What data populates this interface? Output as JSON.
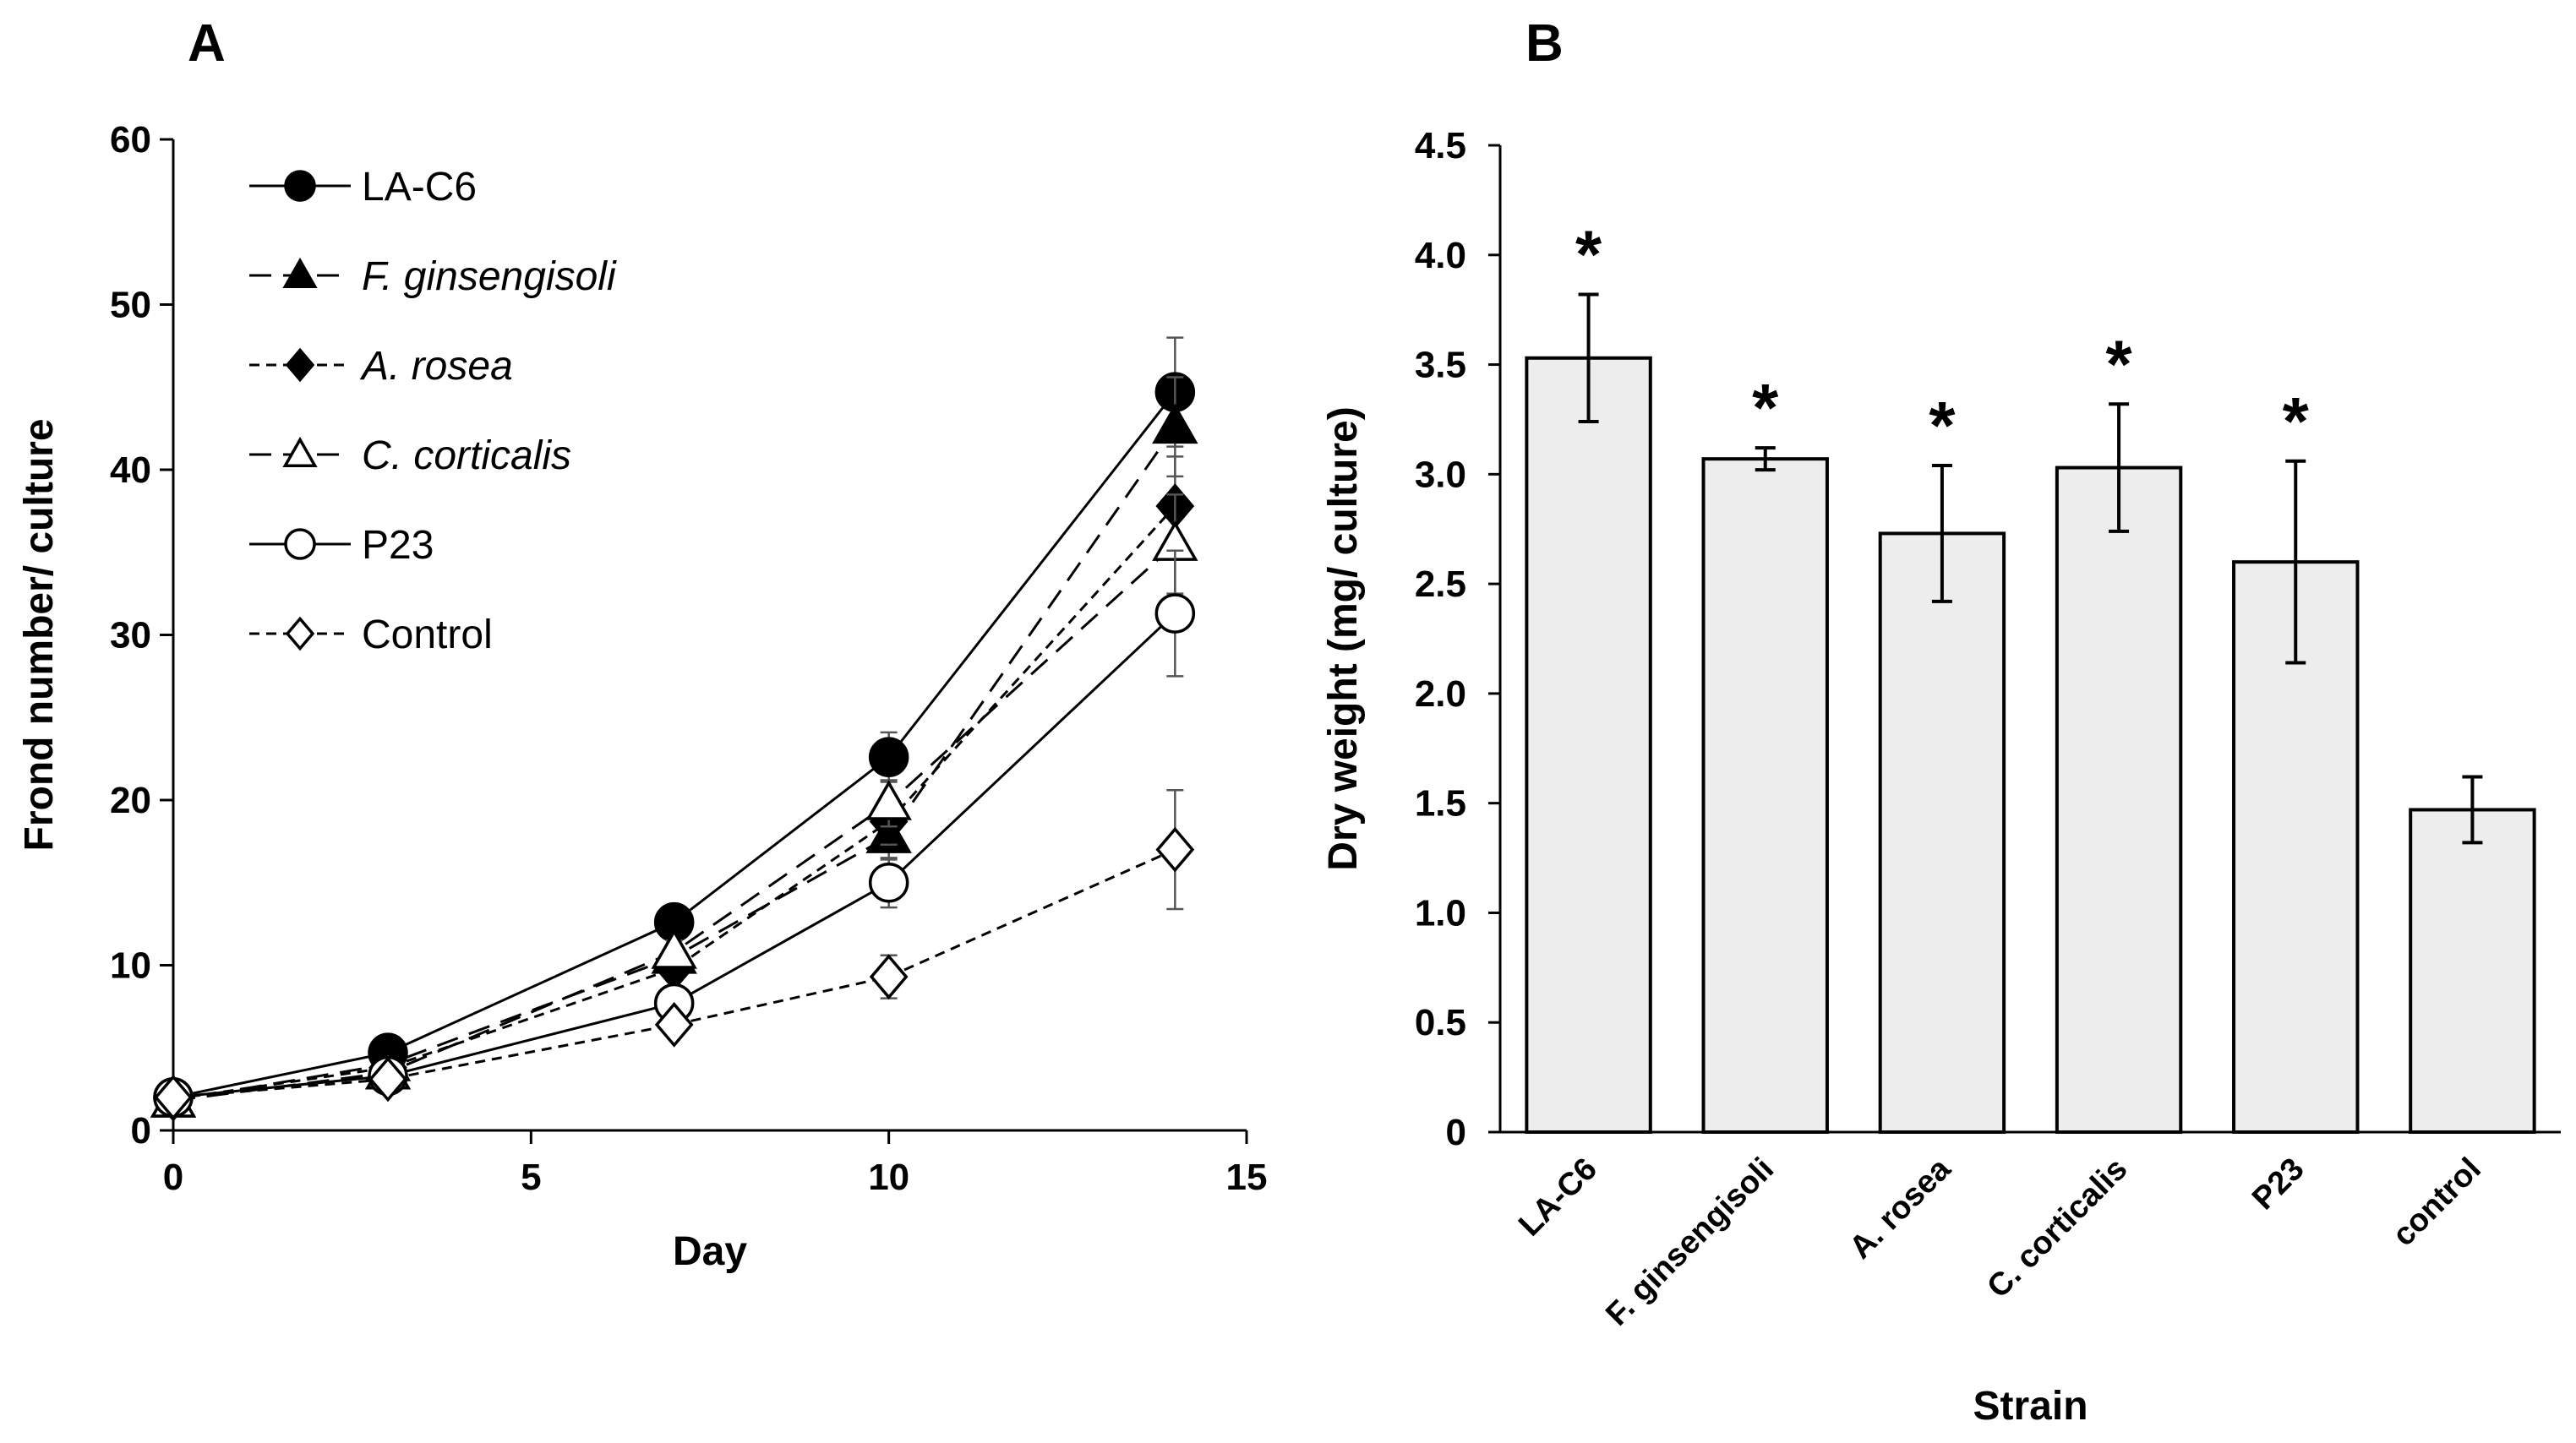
{
  "panels": {
    "a": "A",
    "b": "B"
  },
  "chart_data": [
    {
      "type": "line",
      "title": "A",
      "xlabel": "Day",
      "ylabel": "Frond number/ culture",
      "xlim": [
        0,
        15
      ],
      "ylim": [
        0,
        60
      ],
      "xticks": [
        0,
        5,
        10,
        15
      ],
      "yticks": [
        0,
        10,
        20,
        30,
        40,
        50,
        60
      ],
      "x": [
        0,
        3,
        7,
        10,
        14
      ],
      "series": [
        {
          "name": "LA-C6",
          "italic": false,
          "marker": "circle",
          "filled": true,
          "dash": "solid",
          "values": [
            2,
            4.7,
            12.6,
            22.6,
            44.7
          ],
          "err": [
            0.3,
            0.4,
            0.7,
            1.5,
            3.3
          ]
        },
        {
          "name": "F. ginsengisoli",
          "italic": true,
          "marker": "triangle",
          "filled": true,
          "dash": "long",
          "values": [
            1.8,
            4.0,
            10.5,
            17.8,
            42.6
          ],
          "err": [
            0.3,
            0.4,
            0.7,
            1.4,
            3.0
          ]
        },
        {
          "name": "A. rosea",
          "italic": true,
          "marker": "diamond",
          "filled": true,
          "dash": "short",
          "values": [
            1.9,
            3.8,
            9.8,
            18.7,
            37.8
          ],
          "err": [
            0.3,
            0.4,
            0.7,
            1.4,
            3.0
          ]
        },
        {
          "name": "C. corticalis",
          "italic": true,
          "marker": "triangle",
          "filled": false,
          "dash": "long",
          "values": [
            1.8,
            3.5,
            10.8,
            19.8,
            35.5
          ],
          "err": [
            0.3,
            0.4,
            0.7,
            1.4,
            3.0
          ]
        },
        {
          "name": "P23",
          "italic": false,
          "marker": "circle",
          "filled": false,
          "dash": "solid",
          "values": [
            2.0,
            3.3,
            7.7,
            15.0,
            31.3
          ],
          "err": [
            0.3,
            0.4,
            0.7,
            1.5,
            3.8
          ]
        },
        {
          "name": "Control",
          "italic": false,
          "marker": "diamond",
          "filled": false,
          "dash": "short",
          "values": [
            2.0,
            3.1,
            6.4,
            9.3,
            17.0
          ],
          "err": [
            0.3,
            0.4,
            0.6,
            1.3,
            3.6
          ]
        }
      ]
    },
    {
      "type": "bar",
      "title": "B",
      "xlabel": "Strain",
      "ylabel": "Dry weight (mg/ culture)",
      "ylim": [
        0,
        4.5
      ],
      "yticks": [
        "0",
        "0.5",
        "1.0",
        "1.5",
        "2.0",
        "2.5",
        "3.0",
        "3.5",
        "4.0",
        "4.5"
      ],
      "categories": [
        "LA-C6",
        "F. ginsengisoli",
        "A. rosea",
        "C. corticalis",
        "P23",
        "control"
      ],
      "values": [
        3.53,
        3.07,
        2.73,
        3.03,
        2.6,
        1.47
      ],
      "err": [
        0.29,
        0.05,
        0.31,
        0.29,
        0.46,
        0.15
      ],
      "significance": [
        "*",
        "*",
        "*",
        "*",
        "*",
        ""
      ],
      "bar_color": "#ededed"
    }
  ]
}
